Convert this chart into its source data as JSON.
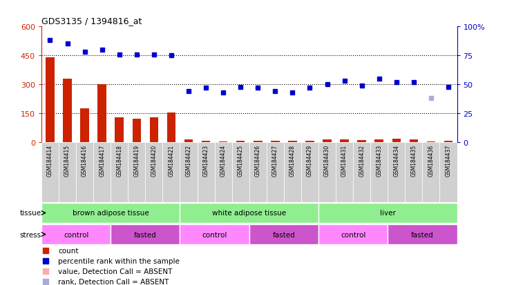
{
  "title": "GDS3135 / 1394816_at",
  "samples": [
    "GSM184414",
    "GSM184415",
    "GSM184416",
    "GSM184417",
    "GSM184418",
    "GSM184419",
    "GSM184420",
    "GSM184421",
    "GSM184422",
    "GSM184423",
    "GSM184424",
    "GSM184425",
    "GSM184426",
    "GSM184427",
    "GSM184428",
    "GSM184429",
    "GSM184430",
    "GSM184431",
    "GSM184432",
    "GSM184433",
    "GSM184434",
    "GSM184435",
    "GSM184436",
    "GSM184437"
  ],
  "count_values": [
    440,
    330,
    175,
    300,
    130,
    120,
    130,
    155,
    15,
    7,
    5,
    7,
    7,
    7,
    7,
    7,
    14,
    14,
    10,
    14,
    18,
    14,
    4,
    7
  ],
  "count_absent": [
    false,
    false,
    false,
    false,
    false,
    false,
    false,
    false,
    false,
    false,
    false,
    false,
    false,
    false,
    false,
    false,
    false,
    false,
    false,
    false,
    false,
    false,
    false,
    false
  ],
  "percentile_values": [
    88,
    85,
    78,
    80,
    76,
    76,
    76,
    75,
    44,
    47,
    43,
    48,
    47,
    44,
    43,
    47,
    50,
    53,
    49,
    55,
    52,
    52,
    38,
    48
  ],
  "percentile_absent": [
    false,
    false,
    false,
    false,
    false,
    false,
    false,
    false,
    false,
    false,
    false,
    false,
    false,
    false,
    false,
    false,
    false,
    false,
    false,
    false,
    false,
    false,
    true,
    false
  ],
  "ylim_left": [
    0,
    600
  ],
  "ylim_right": [
    0,
    100
  ],
  "yticks_left": [
    0,
    150,
    300,
    450,
    600
  ],
  "yticks_right": [
    0,
    25,
    50,
    75,
    100
  ],
  "tissue_groups": [
    {
      "label": "brown adipose tissue",
      "start": 0,
      "end": 7,
      "color": "#90EE90"
    },
    {
      "label": "white adipose tissue",
      "start": 8,
      "end": 15,
      "color": "#90EE90"
    },
    {
      "label": "liver",
      "start": 16,
      "end": 23,
      "color": "#90EE90"
    }
  ],
  "stress_groups": [
    {
      "label": "control",
      "start": 0,
      "end": 3,
      "color": "#FF88FF"
    },
    {
      "label": "fasted",
      "start": 4,
      "end": 7,
      "color": "#CC55CC"
    },
    {
      "label": "control",
      "start": 8,
      "end": 11,
      "color": "#FF88FF"
    },
    {
      "label": "fasted",
      "start": 12,
      "end": 15,
      "color": "#CC55CC"
    },
    {
      "label": "control",
      "start": 16,
      "end": 19,
      "color": "#FF88FF"
    },
    {
      "label": "fasted",
      "start": 20,
      "end": 23,
      "color": "#CC55CC"
    }
  ],
  "bar_color": "#CC2200",
  "bar_absent_color": "#FFAAAA",
  "dot_color": "#0000CC",
  "dot_absent_color": "#AAAADD",
  "background_color": "#FFFFFF",
  "sample_bg_color": "#CCCCCC",
  "left_axis_color": "#CC2200",
  "right_axis_color": "#0000CC"
}
